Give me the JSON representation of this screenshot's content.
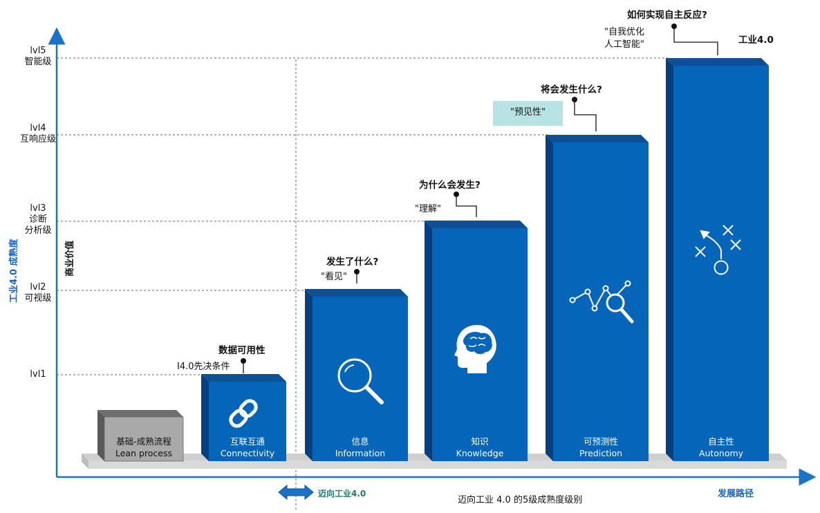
{
  "title": "迈向工业 4.0 的5级成熟度级别",
  "axes": {
    "y_axis_label": "工业4.0 成熟度",
    "value_label": "商业价值",
    "x_axis_label": "发展路径",
    "transition_label": "迈向工业4.0"
  },
  "levels": [
    {
      "code": "lvl5",
      "name": "智能级"
    },
    {
      "code": "lvl4",
      "name": "互响应级"
    },
    {
      "code": "lvl3",
      "name": "诊断\n分析级"
    },
    {
      "code": "lvl2",
      "name": "可视级"
    },
    {
      "code": "lvl1",
      "name": ""
    }
  ],
  "stages": [
    {
      "cn": "基础-成熟流程",
      "en": "Lean process",
      "question": "",
      "note": "",
      "icon": "none"
    },
    {
      "cn": "互联互通",
      "en": "Connectivity",
      "question": "数据可用性",
      "note": "I4.0先决条件",
      "icon": "link-icon"
    },
    {
      "cn": "信息",
      "en": "Information",
      "question": "发生了什么?",
      "note": "\"看见\"",
      "icon": "magnifier-icon"
    },
    {
      "cn": "知识",
      "en": "Knowledge",
      "question": "为什么会发生?",
      "note": "\"理解\"",
      "icon": "brain-head-icon"
    },
    {
      "cn": "可预测性",
      "en": "Prediction",
      "question": "将会发生什么?",
      "note": "\"预见性\"",
      "icon": "trend-search-icon"
    },
    {
      "cn": "自主性",
      "en": "Autonomy",
      "question": "如何实现自主反应?",
      "note": "\"自我优化\n人工智能\"",
      "icon": "strategy-play-icon"
    }
  ],
  "top_label": "工业4.0",
  "colors": {
    "bar_front": "#0565b9",
    "bar_top": "#0e4f96",
    "bar_side": "#053f80",
    "gray_front": "#a9a9a9",
    "axis": "#1a73c9",
    "predict_box": "#b8e3e3"
  }
}
